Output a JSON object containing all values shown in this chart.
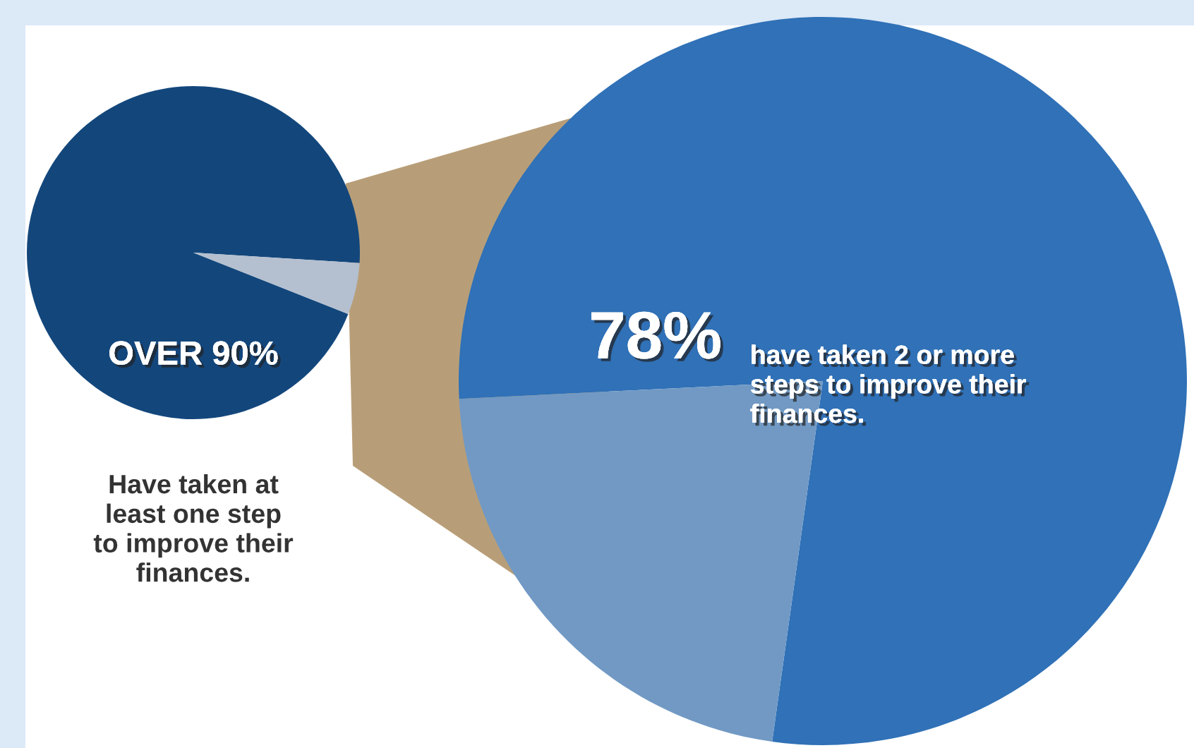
{
  "chart_data": [
    {
      "type": "pie",
      "categories": [
        null,
        null
      ],
      "values": [
        95,
        5
      ],
      "colors": [
        "#13477c",
        "#b4bfcf"
      ],
      "value_labels": [
        "OVER 90%",
        null
      ],
      "annotations": [
        "Have taken at\nleast one step\nto improve their\nfinances."
      ]
    },
    {
      "type": "pie",
      "categories": [
        null,
        null
      ],
      "values": [
        78,
        22
      ],
      "colors": [
        "#3071b7",
        "#7199c4"
      ],
      "value_labels": [
        "78%",
        null
      ],
      "annotations": [
        "have taken 2 or more\nsteps to improve their\nfinances."
      ]
    }
  ]
}
